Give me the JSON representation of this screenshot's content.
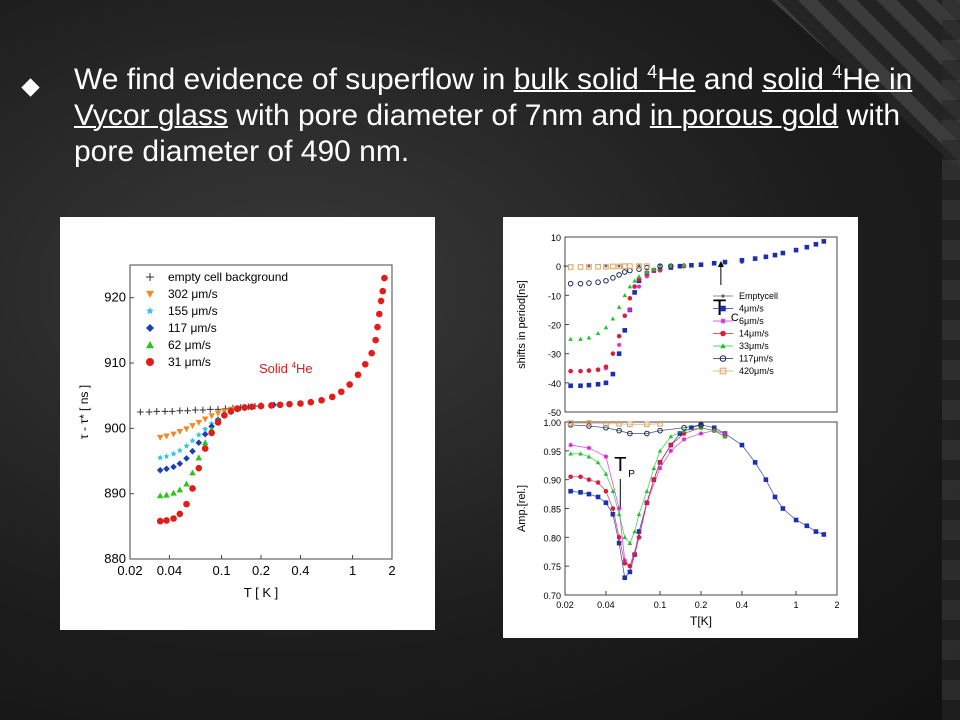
{
  "slide": {
    "bullet_text": {
      "p1": "We find evidence of superflow in ",
      "u1": "bulk solid ",
      "u1_sup": "4",
      "u1b": "He",
      "p2": " and ",
      "u2": "solid ",
      "u2_sup": "4",
      "u2b": "He in Vycor glass",
      "p3": " with pore diameter of 7nm and ",
      "u3": "in porous gold",
      "p4": " with pore diameter of 490 nm."
    }
  },
  "chart_data": [
    {
      "type": "scatter",
      "xscale": "log",
      "xlim": [
        0.02,
        2
      ],
      "ylim": [
        880,
        925
      ],
      "xlabel": "T [ K ]",
      "ylabel": "τ - τ* [ ns ]",
      "xticks": [
        "0.02",
        "0.04",
        "0.1",
        "0.2",
        "0.4",
        "1",
        "2"
      ],
      "yticks": [
        "880",
        "890",
        "900",
        "910",
        "920"
      ],
      "annotation": "Solid 4He",
      "legend_position": "top-left",
      "series": [
        {
          "name": "empty cell background",
          "color": "#333333",
          "marker": "plus",
          "x": [
            0.024,
            0.028,
            0.032,
            0.037,
            0.042,
            0.048,
            0.055,
            0.063,
            0.072,
            0.082,
            0.094,
            0.107,
            0.122,
            0.14,
            0.16,
            0.18
          ],
          "y": [
            902.5,
            902.5,
            902.6,
            902.6,
            902.6,
            902.7,
            902.7,
            902.8,
            902.8,
            902.9,
            902.9,
            903.0,
            903.1,
            903.2,
            903.3,
            903.4
          ]
        },
        {
          "name": "302 μm/s",
          "color": "#f08a24",
          "marker": "triangle-down",
          "x": [
            0.034,
            0.038,
            0.043,
            0.048,
            0.054,
            0.06,
            0.067,
            0.075,
            0.084,
            0.094,
            0.105,
            0.118,
            0.132
          ],
          "y": [
            898.6,
            898.8,
            899.1,
            899.5,
            899.9,
            900.4,
            900.9,
            901.4,
            901.9,
            902.3,
            902.6,
            902.9,
            903.1
          ]
        },
        {
          "name": "155 μm/s",
          "color": "#2ec4e8",
          "marker": "star",
          "x": [
            0.034,
            0.038,
            0.043,
            0.048,
            0.054,
            0.06,
            0.067,
            0.075,
            0.084,
            0.094,
            0.105,
            0.118,
            0.132,
            0.148
          ],
          "y": [
            895.5,
            895.7,
            896.1,
            896.6,
            897.3,
            898.1,
            899.0,
            899.9,
            900.7,
            901.4,
            902.0,
            902.5,
            902.9,
            903.1
          ]
        },
        {
          "name": "117 μm/s",
          "color": "#1c3fb4",
          "marker": "diamond",
          "x": [
            0.034,
            0.038,
            0.043,
            0.048,
            0.054,
            0.06,
            0.067,
            0.075,
            0.084,
            0.094,
            0.105,
            0.118,
            0.132,
            0.15,
            0.17,
            0.2,
            0.25
          ],
          "y": [
            893.6,
            893.8,
            894.1,
            894.6,
            895.4,
            896.5,
            897.8,
            899.1,
            900.3,
            901.3,
            902.0,
            902.5,
            902.9,
            903.1,
            903.3,
            903.5,
            903.6
          ]
        },
        {
          "name": "62 μm/s",
          "color": "#2ec21e",
          "marker": "triangle-up",
          "x": [
            0.034,
            0.038,
            0.043,
            0.048,
            0.054,
            0.06,
            0.067,
            0.075,
            0.084,
            0.094,
            0.105,
            0.118,
            0.132
          ],
          "y": [
            889.7,
            889.8,
            890.1,
            890.6,
            891.5,
            893.2,
            895.5,
            897.8,
            899.8,
            901.2,
            902.2,
            902.8,
            903.1
          ]
        },
        {
          "name": "31 μm/s",
          "color": "#e21b1b",
          "marker": "circle",
          "x": [
            0.034,
            0.038,
            0.043,
            0.048,
            0.054,
            0.06,
            0.067,
            0.075,
            0.084,
            0.094,
            0.105,
            0.118,
            0.132,
            0.15,
            0.17,
            0.2,
            0.24,
            0.28,
            0.33,
            0.4,
            0.48,
            0.58,
            0.7,
            0.82,
            0.95,
            1.1,
            1.25,
            1.4,
            1.5,
            1.55,
            1.6,
            1.65,
            1.7,
            1.75
          ],
          "y": [
            885.8,
            885.9,
            886.2,
            886.9,
            888.4,
            890.8,
            893.9,
            896.9,
            899.3,
            900.9,
            902.0,
            902.6,
            903.0,
            903.2,
            903.3,
            903.4,
            903.5,
            903.6,
            903.7,
            903.8,
            904.0,
            904.3,
            904.8,
            905.6,
            906.7,
            908.2,
            909.8,
            911.5,
            913.5,
            915.5,
            917.5,
            919.5,
            921.0,
            923.0
          ]
        }
      ]
    },
    {
      "type": "scatter",
      "xscale": "log",
      "xlim": [
        0.02,
        2
      ],
      "ylim": [
        -50,
        10
      ],
      "ylabel": "shifts in period[ns]",
      "xticks": [],
      "yticks": [
        "10",
        "0",
        "-10",
        "-20",
        "-30",
        "-40",
        "-50"
      ],
      "annotation": "TC",
      "legend_position": "bottom-right",
      "series": [
        {
          "name": "Emptycell",
          "color": "#666666",
          "marker": "dot",
          "x": [
            0.02,
            0.03,
            0.04,
            0.05,
            0.07,
            0.1,
            0.15,
            0.2,
            0.3,
            0.4
          ],
          "y": [
            0,
            0,
            0,
            0,
            0.2,
            0.4,
            0.6,
            0.8,
            1.0,
            1.2
          ]
        },
        {
          "name": "4μm/s",
          "color": "#1c2fae",
          "marker": "square",
          "x": [
            0.022,
            0.026,
            0.03,
            0.035,
            0.04,
            0.045,
            0.05,
            0.055,
            0.06,
            0.065,
            0.07,
            0.08,
            0.09,
            0.1,
            0.12,
            0.14,
            0.17,
            0.2,
            0.25,
            0.3,
            0.4,
            0.5,
            0.6,
            0.7,
            0.8,
            1.0,
            1.2,
            1.4,
            1.6
          ],
          "y": [
            -41,
            -41,
            -40.8,
            -40.5,
            -40,
            -37,
            -30,
            -22,
            -15,
            -9,
            -5,
            -2.5,
            -1.5,
            -1,
            -0.5,
            0,
            0.3,
            0.5,
            1,
            1.4,
            2,
            2.6,
            3.2,
            3.8,
            4.5,
            5.5,
            6.5,
            7.5,
            8.5
          ]
        },
        {
          "name": "6μm/s",
          "color": "#d02ad0",
          "marker": "asterisk",
          "x": [
            0.022,
            0.03,
            0.04,
            0.05,
            0.06,
            0.07,
            0.08,
            0.1,
            0.12,
            0.15
          ],
          "y": [
            -36,
            -35.8,
            -35,
            -27,
            -15,
            -7,
            -3.5,
            -1.5,
            -0.5,
            0
          ]
        },
        {
          "name": "14μm/s",
          "color": "#d81e3c",
          "marker": "circle",
          "x": [
            0.022,
            0.026,
            0.03,
            0.035,
            0.04,
            0.045,
            0.05,
            0.055,
            0.06,
            0.065,
            0.07,
            0.08,
            0.09,
            0.1,
            0.12,
            0.15
          ],
          "y": [
            -36,
            -36,
            -35.8,
            -35.5,
            -34.5,
            -30,
            -24,
            -17,
            -11,
            -7,
            -4.5,
            -2.5,
            -1.5,
            -1,
            -0.3,
            0
          ]
        },
        {
          "name": "33μm/s",
          "color": "#22c234",
          "marker": "triangle-up",
          "x": [
            0.022,
            0.026,
            0.03,
            0.035,
            0.04,
            0.045,
            0.05,
            0.055,
            0.06,
            0.065,
            0.07,
            0.08,
            0.09,
            0.1,
            0.12,
            0.15
          ],
          "y": [
            -25,
            -25,
            -24.5,
            -23,
            -21,
            -18,
            -14,
            -10,
            -7,
            -5,
            -3.5,
            -2,
            -1,
            -0.5,
            0,
            0.3
          ]
        },
        {
          "name": "117μm/s",
          "color": "#1a2a5a",
          "marker": "circle-open",
          "x": [
            0.022,
            0.026,
            0.03,
            0.035,
            0.04,
            0.045,
            0.05,
            0.055,
            0.06,
            0.07,
            0.08,
            0.1,
            0.12
          ],
          "y": [
            -6,
            -6,
            -5.8,
            -5.5,
            -5,
            -4,
            -3,
            -2,
            -1.5,
            -1,
            -0.5,
            0,
            0
          ]
        },
        {
          "name": "420μm/s",
          "color": "#e0a060",
          "marker": "square-open",
          "x": [
            0.022,
            0.026,
            0.03,
            0.035,
            0.04,
            0.045,
            0.05,
            0.055,
            0.06,
            0.07,
            0.08
          ],
          "y": [
            -0.3,
            -0.3,
            -0.2,
            -0.2,
            -0.2,
            -0.1,
            -0.1,
            0,
            0,
            0,
            0
          ]
        }
      ]
    },
    {
      "type": "scatter",
      "xscale": "log",
      "xlim": [
        0.02,
        2
      ],
      "ylim": [
        0.7,
        1.0
      ],
      "xlabel": "T[K]",
      "ylabel": "Amp.[rel.]",
      "xticks": [
        "0.02",
        "0.04",
        "0.1",
        "0.2",
        "0.4",
        "1",
        "2"
      ],
      "yticks": [
        "1.00",
        "0.95",
        "0.90",
        "0.85",
        "0.80",
        "0.75",
        "0.70"
      ],
      "annotation": "TP",
      "series": [
        {
          "name": "4μm/s",
          "color": "#1c2fae",
          "marker": "square",
          "x": [
            0.022,
            0.026,
            0.03,
            0.035,
            0.04,
            0.045,
            0.05,
            0.055,
            0.06,
            0.065,
            0.07,
            0.08,
            0.09,
            0.1,
            0.12,
            0.14,
            0.17,
            0.2,
            0.25,
            0.3,
            0.4,
            0.5,
            0.6,
            0.7,
            0.8,
            1.0,
            1.2,
            1.4,
            1.6
          ],
          "y": [
            0.88,
            0.878,
            0.875,
            0.87,
            0.86,
            0.84,
            0.79,
            0.73,
            0.74,
            0.77,
            0.81,
            0.86,
            0.9,
            0.93,
            0.96,
            0.98,
            0.99,
            0.995,
            0.99,
            0.98,
            0.96,
            0.93,
            0.9,
            0.87,
            0.85,
            0.83,
            0.82,
            0.81,
            0.805
          ]
        },
        {
          "name": "6μm/s",
          "color": "#d02ad0",
          "marker": "asterisk",
          "x": [
            0.022,
            0.03,
            0.04,
            0.05,
            0.055,
            0.06,
            0.07,
            0.08,
            0.1,
            0.12,
            0.15,
            0.2,
            0.25,
            0.3
          ],
          "y": [
            0.96,
            0.955,
            0.94,
            0.85,
            0.76,
            0.75,
            0.8,
            0.86,
            0.92,
            0.95,
            0.97,
            0.98,
            0.985,
            0.98
          ]
        },
        {
          "name": "14μm/s",
          "color": "#d81e3c",
          "marker": "circle",
          "x": [
            0.022,
            0.026,
            0.03,
            0.035,
            0.04,
            0.045,
            0.05,
            0.055,
            0.06,
            0.065,
            0.07,
            0.08,
            0.09,
            0.1,
            0.12,
            0.15,
            0.2,
            0.25,
            0.3
          ],
          "y": [
            0.905,
            0.905,
            0.9,
            0.895,
            0.88,
            0.85,
            0.8,
            0.755,
            0.75,
            0.77,
            0.8,
            0.86,
            0.9,
            0.93,
            0.96,
            0.98,
            0.99,
            0.985,
            0.975
          ]
        },
        {
          "name": "33μm/s",
          "color": "#22c234",
          "marker": "triangle-up",
          "x": [
            0.022,
            0.026,
            0.03,
            0.035,
            0.04,
            0.045,
            0.05,
            0.055,
            0.06,
            0.065,
            0.07,
            0.08,
            0.09,
            0.1,
            0.12,
            0.15,
            0.2,
            0.25,
            0.3
          ],
          "y": [
            0.945,
            0.945,
            0.94,
            0.93,
            0.91,
            0.88,
            0.84,
            0.8,
            0.79,
            0.81,
            0.84,
            0.88,
            0.92,
            0.95,
            0.975,
            0.985,
            0.99,
            0.985,
            0.975
          ]
        },
        {
          "name": "117μm/s",
          "color": "#1a2a5a",
          "marker": "circle-open",
          "x": [
            0.022,
            0.03,
            0.04,
            0.05,
            0.06,
            0.08,
            0.1,
            0.15,
            0.2
          ],
          "y": [
            0.995,
            0.993,
            0.99,
            0.985,
            0.98,
            0.98,
            0.985,
            0.99,
            0.995
          ]
        },
        {
          "name": "420μm/s",
          "color": "#e0a060",
          "marker": "square-open",
          "x": [
            0.022,
            0.03,
            0.04,
            0.05,
            0.06,
            0.08,
            0.1
          ],
          "y": [
            0.998,
            0.998,
            0.997,
            0.997,
            0.996,
            0.996,
            0.997
          ]
        }
      ]
    }
  ]
}
